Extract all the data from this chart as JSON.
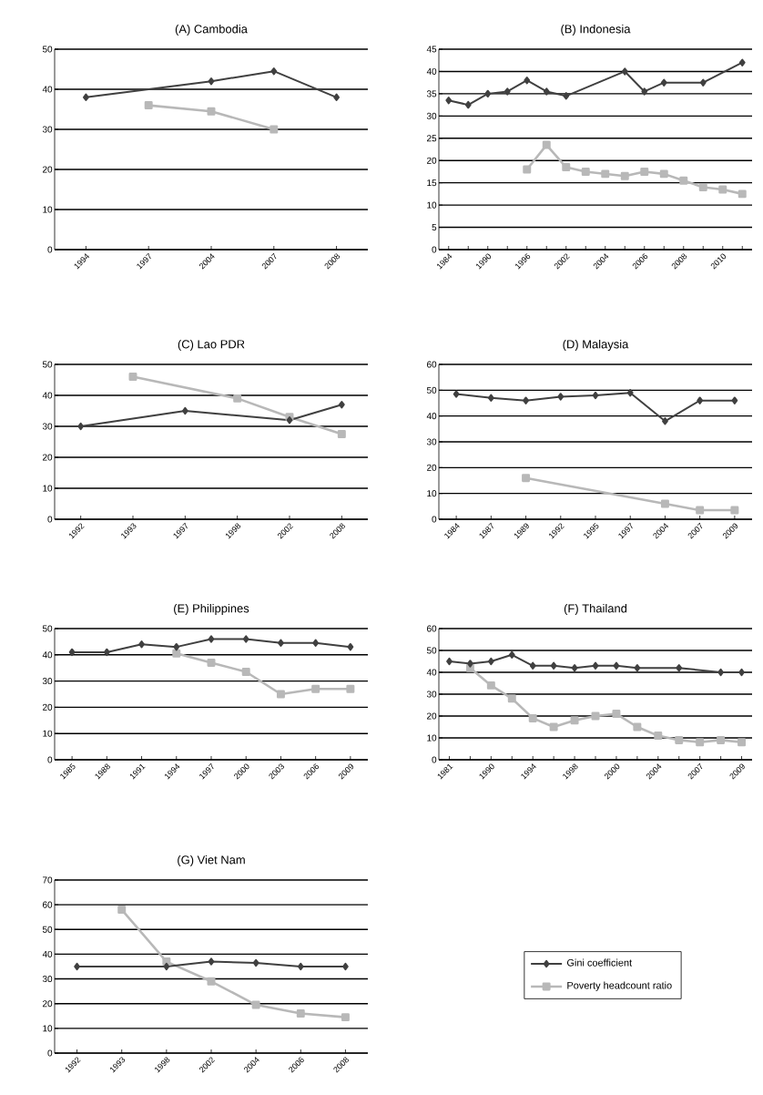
{
  "chart_data": [
    {
      "type": "line",
      "title": "(A) Cambodia",
      "categories": [
        "1994",
        "1997",
        "2004",
        "2007",
        "2008"
      ],
      "ylim": [
        0,
        50
      ],
      "yticks": [
        0,
        10,
        20,
        30,
        40,
        50
      ],
      "grid": "y",
      "legend": false,
      "series": [
        {
          "color": "#404040",
          "marker": "diamond",
          "values": [
            38,
            null,
            42,
            44.5,
            38
          ]
        },
        {
          "color": "#b8b8b8",
          "marker": "square",
          "values": [
            null,
            36,
            34.5,
            30,
            null
          ]
        }
      ]
    },
    {
      "type": "line",
      "title": "(B) Indonesia",
      "categories": [
        "1984",
        null,
        "1990",
        null,
        "1996",
        null,
        "2002",
        null,
        "2004",
        null,
        "2006",
        null,
        "2008",
        null,
        "2010",
        null
      ],
      "ylim": [
        0,
        45
      ],
      "yticks": [
        0,
        5,
        10,
        15,
        20,
        25,
        30,
        35,
        40,
        45
      ],
      "grid": "y",
      "legend": false,
      "series": [
        {
          "color": "#404040",
          "marker": "diamond",
          "values": [
            33.5,
            32.5,
            35,
            35.5,
            38,
            35.5,
            34.5,
            null,
            null,
            40,
            35.5,
            37.5,
            null,
            37.5,
            null,
            42
          ]
        },
        {
          "color": "#b8b8b8",
          "marker": "square",
          "values": [
            null,
            null,
            null,
            null,
            18,
            23.5,
            18.5,
            17.5,
            17,
            16.5,
            17.5,
            17,
            15.5,
            14,
            13.5,
            12.5
          ]
        }
      ]
    },
    {
      "type": "line",
      "title": "(C) Lao PDR",
      "categories": [
        "1992",
        "1993",
        "1997",
        "1998",
        "2002",
        "2008"
      ],
      "ylim": [
        0,
        50
      ],
      "yticks": [
        0,
        10,
        20,
        30,
        40,
        50
      ],
      "grid": "y",
      "legend": false,
      "series": [
        {
          "color": "#404040",
          "marker": "diamond",
          "values": [
            30,
            null,
            35,
            null,
            32,
            37
          ]
        },
        {
          "color": "#b8b8b8",
          "marker": "square",
          "values": [
            null,
            46,
            null,
            39,
            33,
            27.5
          ]
        }
      ]
    },
    {
      "type": "line",
      "title": "(D) Malaysia",
      "categories": [
        "1984",
        "1987",
        "1989",
        "1992",
        "1995",
        "1997",
        "2004",
        "2007",
        "2009"
      ],
      "ylim": [
        0,
        60
      ],
      "yticks": [
        0,
        10,
        20,
        30,
        40,
        50,
        60
      ],
      "grid": "y",
      "legend": false,
      "series": [
        {
          "color": "#404040",
          "marker": "diamond",
          "values": [
            48.5,
            47,
            46,
            47.5,
            48,
            49,
            38,
            46,
            46
          ]
        },
        {
          "color": "#b8b8b8",
          "marker": "square",
          "values": [
            null,
            null,
            16,
            null,
            null,
            null,
            6,
            3.5,
            3.5
          ]
        }
      ]
    },
    {
      "type": "line",
      "title": "(E) Philippines",
      "categories": [
        "1985",
        "1988",
        "1991",
        "1994",
        "1997",
        "2000",
        "2003",
        "2006",
        "2009"
      ],
      "ylim": [
        0,
        50
      ],
      "yticks": [
        0,
        10,
        20,
        30,
        40,
        50
      ],
      "grid": "y",
      "legend": false,
      "series": [
        {
          "color": "#404040",
          "marker": "diamond",
          "values": [
            41,
            41,
            44,
            43,
            46,
            46,
            44.5,
            44.5,
            43
          ]
        },
        {
          "color": "#b8b8b8",
          "marker": "square",
          "values": [
            null,
            null,
            null,
            40.5,
            37,
            33.5,
            25,
            27,
            27
          ]
        }
      ]
    },
    {
      "type": "line",
      "title": "(F) Thailand",
      "categories": [
        "1981",
        null,
        "1990",
        null,
        "1994",
        null,
        "1998",
        null,
        "2000",
        null,
        "2004",
        null,
        "2007",
        null,
        "2009"
      ],
      "ylim": [
        0,
        60
      ],
      "yticks": [
        0,
        10,
        20,
        30,
        40,
        50,
        60
      ],
      "grid": "y",
      "legend": false,
      "series": [
        {
          "color": "#404040",
          "marker": "diamond",
          "values": [
            45,
            44,
            45,
            48,
            43,
            43,
            42,
            43,
            43,
            42,
            null,
            42,
            null,
            40,
            40
          ]
        },
        {
          "color": "#b8b8b8",
          "marker": "square",
          "values": [
            null,
            42,
            34,
            28,
            19,
            15,
            18,
            20,
            21,
            15,
            11,
            9,
            8,
            9,
            8
          ]
        }
      ]
    },
    {
      "type": "line",
      "title": "(G) Viet Nam",
      "categories": [
        "1992",
        "1993",
        "1998",
        "2002",
        "2004",
        "2006",
        "2008"
      ],
      "ylim": [
        0,
        70
      ],
      "yticks": [
        0,
        10,
        20,
        30,
        40,
        50,
        60,
        70
      ],
      "grid": "y",
      "legend": "right",
      "series": [
        {
          "name": "Gini coefficient",
          "color": "#404040",
          "marker": "diamond",
          "values": [
            35,
            null,
            35,
            37,
            36.5,
            35,
            35
          ]
        },
        {
          "name": "Poverty headcount ratio",
          "color": "#b8b8b8",
          "marker": "square",
          "values": [
            null,
            58,
            37,
            29,
            19.5,
            16,
            14.5
          ]
        }
      ]
    }
  ]
}
